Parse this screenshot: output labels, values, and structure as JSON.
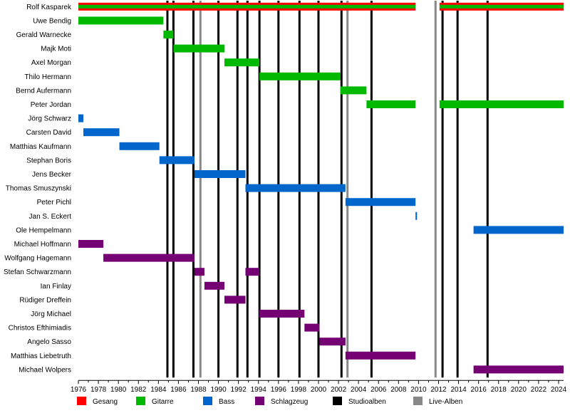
{
  "chart_data": {
    "type": "timeline",
    "x_range": [
      1976,
      2024.5
    ],
    "x_ticks": [
      1976,
      1978,
      1980,
      1982,
      1984,
      1986,
      1988,
      1990,
      1992,
      1994,
      1996,
      1998,
      2000,
      2002,
      2004,
      2006,
      2008,
      2010,
      2012,
      2014,
      2016,
      2018,
      2020,
      2022,
      2024
    ],
    "x_tick_labels": [
      "1976",
      "1978",
      "1980",
      "1982",
      "1984",
      "1986",
      "1988",
      "1990",
      "1992",
      "1994",
      "1996",
      "1998",
      "2000",
      "2002",
      "2004",
      "2006",
      "2008",
      "2010",
      "2012",
      "2014",
      "2016",
      "2018",
      "2020",
      "2022",
      "2024"
    ],
    "grid": true,
    "legend_position": "bottom",
    "roles": [
      {
        "key": "gesang",
        "name": "Gesang",
        "color": "#ff0000"
      },
      {
        "key": "gitarre",
        "name": "Gitarre",
        "color": "#00b900"
      },
      {
        "key": "bass",
        "name": "Bass",
        "color": "#0066cc"
      },
      {
        "key": "schlagzeug",
        "name": "Schlagzeug",
        "color": "#740074"
      }
    ],
    "album_types": [
      {
        "key": "studio",
        "name": "Studioalben",
        "color": "#000000"
      },
      {
        "key": "live",
        "name": "Live-Alben",
        "color": "#888888"
      }
    ],
    "members": [
      {
        "name": "Rolf Kasparek",
        "periods": [
          {
            "role": "gesang",
            "start": 1976,
            "end": 2009.7
          },
          {
            "role": "gitarre",
            "start": 1976,
            "end": 2009.7
          },
          {
            "role": "gesang",
            "start": 2012.1,
            "end": 2024.5
          },
          {
            "role": "gitarre",
            "start": 2012.1,
            "end": 2024.5
          }
        ]
      },
      {
        "name": "Uwe Bendig",
        "periods": [
          {
            "role": "gitarre",
            "start": 1976,
            "end": 1984.5
          }
        ]
      },
      {
        "name": "Gerald Warnecke",
        "periods": [
          {
            "role": "gitarre",
            "start": 1984.5,
            "end": 1985.5
          }
        ]
      },
      {
        "name": "Majk Moti",
        "periods": [
          {
            "role": "gitarre",
            "start": 1985.5,
            "end": 1990.6
          }
        ]
      },
      {
        "name": "Axel Morgan",
        "periods": [
          {
            "role": "gitarre",
            "start": 1990.6,
            "end": 1994.1
          }
        ]
      },
      {
        "name": "Thilo Hermann",
        "periods": [
          {
            "role": "gitarre",
            "start": 1994.1,
            "end": 2002.2
          }
        ]
      },
      {
        "name": "Bernd Aufermann",
        "periods": [
          {
            "role": "gitarre",
            "start": 2002.2,
            "end": 2004.8
          }
        ]
      },
      {
        "name": "Peter Jordan",
        "periods": [
          {
            "role": "gitarre",
            "start": 2004.8,
            "end": 2009.7
          },
          {
            "role": "gitarre",
            "start": 2012.1,
            "end": 2024.5
          }
        ]
      },
      {
        "name": "Jörg Schwarz",
        "periods": [
          {
            "role": "bass",
            "start": 1976,
            "end": 1976.5
          }
        ]
      },
      {
        "name": "Carsten David",
        "periods": [
          {
            "role": "bass",
            "start": 1976.5,
            "end": 1980.1
          }
        ]
      },
      {
        "name": "Matthias Kaufmann",
        "periods": [
          {
            "role": "bass",
            "start": 1980.1,
            "end": 1984.1
          }
        ]
      },
      {
        "name": "Stephan Boris",
        "periods": [
          {
            "role": "bass",
            "start": 1984.1,
            "end": 1987.6
          }
        ]
      },
      {
        "name": "Jens Becker",
        "periods": [
          {
            "role": "bass",
            "start": 1987.6,
            "end": 1992.7
          }
        ]
      },
      {
        "name": "Thomas Smuszynski",
        "periods": [
          {
            "role": "bass",
            "start": 1992.7,
            "end": 2002.7
          }
        ]
      },
      {
        "name": "Peter Pichl",
        "periods": [
          {
            "role": "bass",
            "start": 2002.7,
            "end": 2009.7
          }
        ]
      },
      {
        "name": "Jan S. Eckert",
        "periods": [
          {
            "role": "bass",
            "start": 2009.7,
            "end": 2009.85
          }
        ]
      },
      {
        "name": "Ole Hempelmann",
        "periods": [
          {
            "role": "bass",
            "start": 2015.5,
            "end": 2024.5
          }
        ]
      },
      {
        "name": "Michael Hoffmann",
        "periods": [
          {
            "role": "schlagzeug",
            "start": 1976,
            "end": 1978.5
          }
        ]
      },
      {
        "name": "Wolfgang Hagemann",
        "periods": [
          {
            "role": "schlagzeug",
            "start": 1978.5,
            "end": 1987.6
          }
        ]
      },
      {
        "name": "Stefan Schwarzmann",
        "periods": [
          {
            "role": "schlagzeug",
            "start": 1987.6,
            "end": 1988.6
          },
          {
            "role": "schlagzeug",
            "start": 1992.7,
            "end": 1994.1
          }
        ]
      },
      {
        "name": "Ian Finlay",
        "periods": [
          {
            "role": "schlagzeug",
            "start": 1988.6,
            "end": 1990.6
          }
        ]
      },
      {
        "name": "Rüdiger Dreffein",
        "periods": [
          {
            "role": "schlagzeug",
            "start": 1990.6,
            "end": 1992.7
          }
        ]
      },
      {
        "name": "Jörg Michael",
        "periods": [
          {
            "role": "schlagzeug",
            "start": 1994.1,
            "end": 1998.6
          }
        ]
      },
      {
        "name": "Christos Efthimiadis",
        "periods": [
          {
            "role": "schlagzeug",
            "start": 1998.6,
            "end": 2000.1
          }
        ]
      },
      {
        "name": "Angelo Sasso",
        "periods": [
          {
            "role": "schlagzeug",
            "start": 2000.1,
            "end": 2002.7
          }
        ]
      },
      {
        "name": "Matthias Liebetruth",
        "periods": [
          {
            "role": "schlagzeug",
            "start": 2002.7,
            "end": 2009.7
          }
        ]
      },
      {
        "name": "Michael Wolpers",
        "periods": [
          {
            "role": "schlagzeug",
            "start": 2015.5,
            "end": 2024.5
          }
        ]
      }
    ],
    "studio_albums": [
      1984.9,
      1985.5,
      1987.5,
      1990.0,
      1991.9,
      1992.9,
      1994.1,
      1996.0,
      1998.1,
      2000.0,
      2002.3,
      2005.3,
      2012.4,
      2013.9,
      2016.9
    ],
    "live_albums": [
      1988.2,
      2002.9,
      2011.7
    ]
  }
}
